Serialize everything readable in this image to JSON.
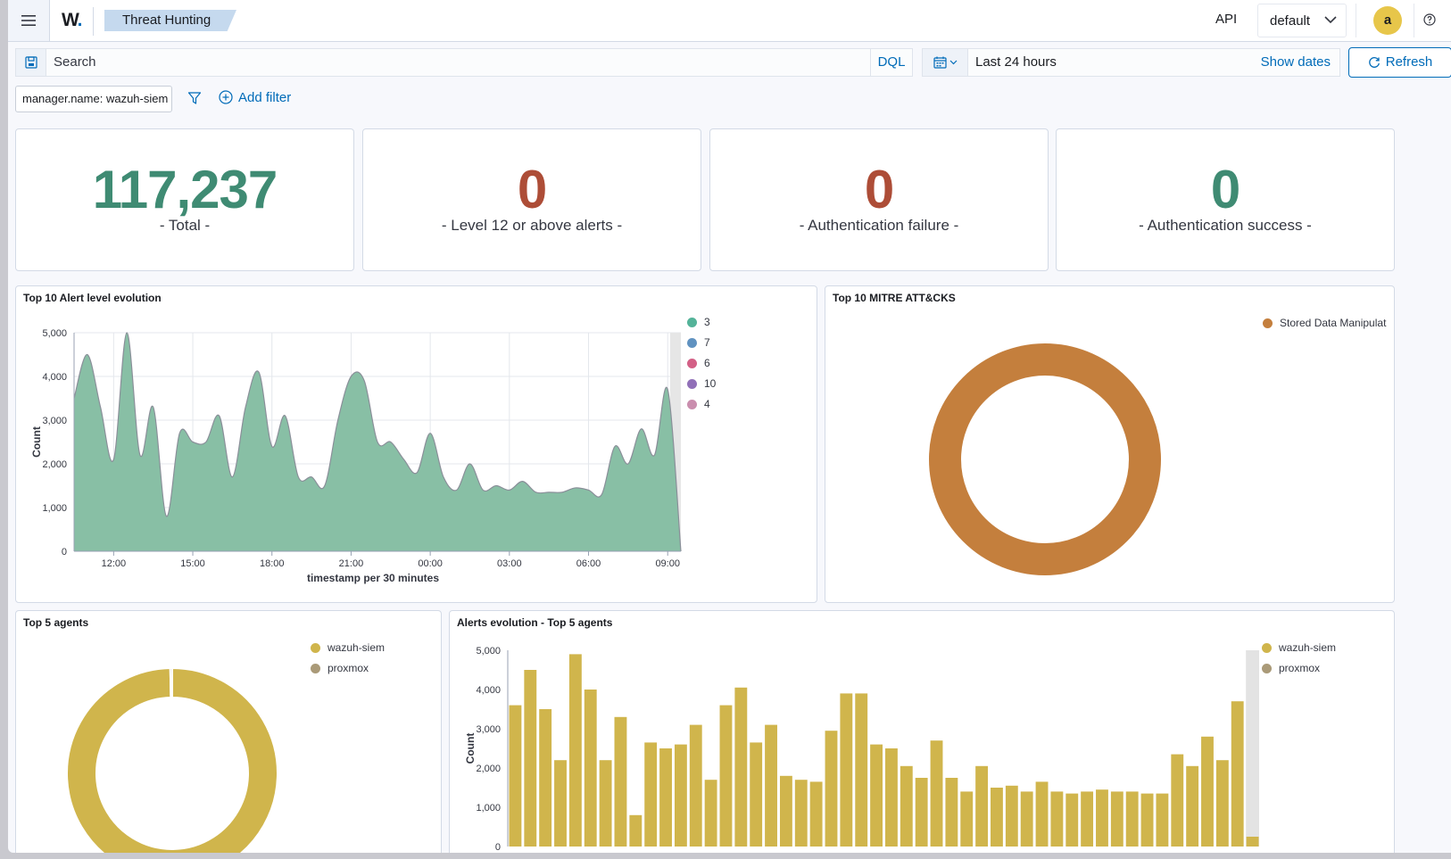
{
  "header": {
    "app_logo": "W",
    "breadcrumb": "Threat Hunting",
    "api_label": "API",
    "api_selected": "default",
    "user_initial": "a"
  },
  "query": {
    "search_placeholder": "Search",
    "language": "DQL",
    "time_range": "Last 24 hours",
    "show_dates": "Show dates",
    "refresh": "Refresh"
  },
  "filters": {
    "active": [
      "manager.name: wazuh-siem"
    ],
    "add_filter": "Add filter"
  },
  "metrics": [
    {
      "value": "117,237",
      "label": "- Total -",
      "color": "#3f8b73"
    },
    {
      "value": "0",
      "label": "- Level 12 or above alerts -",
      "color": "#ad4d37"
    },
    {
      "value": "0",
      "label": "- Authentication failure -",
      "color": "#ad4d37"
    },
    {
      "value": "0",
      "label": "- Authentication success -",
      "color": "#3f8b73"
    }
  ],
  "panels": {
    "alert_level": "Top 10 Alert level evolution",
    "mitre": "Top 10 MITRE ATT&CKS",
    "top_agents": "Top 5 agents",
    "agents_evolution": "Alerts evolution - Top 5 agents"
  },
  "colors": {
    "accent": "#006bb8",
    "area_fill": "#88bfa5",
    "mitre": "#c47f3d",
    "agent_primary": "#d0b54c",
    "agent_secondary": "#aa9a78"
  },
  "chart_data": [
    {
      "type": "area",
      "title": "Top 10 Alert level evolution",
      "xlabel": "timestamp per 30 minutes",
      "ylabel": "Count",
      "ylim": [
        0,
        5000
      ],
      "yticks": [
        "0",
        "1,000",
        "2,000",
        "3,000",
        "4,000",
        "5,000"
      ],
      "xticks": [
        "12:00",
        "15:00",
        "18:00",
        "21:00",
        "00:00",
        "03:00",
        "06:00",
        "09:00"
      ],
      "legend": [
        {
          "name": "3",
          "color": "#54b399"
        },
        {
          "name": "7",
          "color": "#6092c0"
        },
        {
          "name": "6",
          "color": "#d36086"
        },
        {
          "name": "10",
          "color": "#9170b8"
        },
        {
          "name": "4",
          "color": "#ca8eae"
        }
      ],
      "series": [
        {
          "name": "3",
          "values": [
            3500,
            4500,
            3300,
            2100,
            5000,
            2200,
            3300,
            800,
            2700,
            2500,
            2500,
            3100,
            1700,
            3300,
            4100,
            2400,
            3100,
            1700,
            1700,
            1500,
            3000,
            4000,
            3900,
            2500,
            2500,
            2100,
            1800,
            2700,
            1700,
            1400,
            2000,
            1400,
            1500,
            1400,
            1600,
            1350,
            1350,
            1350,
            1450,
            1400,
            1300,
            2400,
            2000,
            2800,
            2200,
            3700,
            0
          ]
        }
      ]
    },
    {
      "type": "pie",
      "title": "Top 10 MITRE ATT&CKS",
      "legend": [
        "Stored Data Manipulat"
      ],
      "values": [
        100
      ]
    },
    {
      "type": "pie",
      "title": "Top 5 agents",
      "legend": [
        "wazuh-siem",
        "proxmox"
      ],
      "values": [
        99.7,
        0.3
      ]
    },
    {
      "type": "bar",
      "title": "Alerts evolution - Top 5 agents",
      "ylabel": "Count",
      "ylim": [
        0,
        5000
      ],
      "yticks": [
        "0",
        "1,000",
        "2,000",
        "3,000",
        "4,000",
        "5,000"
      ],
      "legend": [
        "wazuh-siem",
        "proxmox"
      ],
      "series": [
        {
          "name": "wazuh-siem",
          "values": [
            3600,
            4500,
            3500,
            2200,
            4900,
            4000,
            2200,
            3300,
            800,
            2650,
            2500,
            2600,
            3100,
            1700,
            3600,
            4050,
            2650,
            3100,
            1800,
            1700,
            1650,
            2950,
            3900,
            3900,
            2600,
            2500,
            2050,
            1750,
            2700,
            1750,
            1400,
            2050,
            1500,
            1550,
            1400,
            1650,
            1400,
            1350,
            1400,
            1450,
            1400,
            1400,
            1350,
            1350,
            2350,
            2050,
            2800,
            2200,
            3700,
            250
          ]
        }
      ]
    }
  ]
}
